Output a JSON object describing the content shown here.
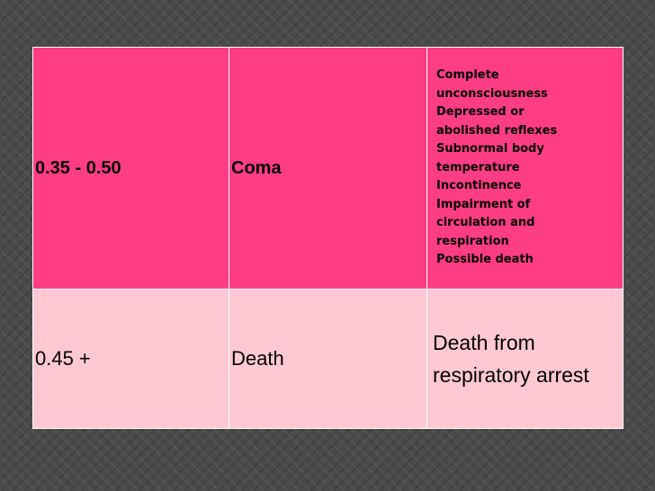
{
  "table": {
    "rows": [
      {
        "bac_range": "0.35 - 0.50",
        "stage": "Coma",
        "effects": [
          "Complete",
          "unconsciousness",
          "Depressed or",
          "abolished reflexes",
          "Subnormal body",
          "temperature",
          "Incontinence",
          "Impairment of",
          "circulation and",
          "respiration",
          "Possible death"
        ]
      },
      {
        "bac_range": "0.45 +",
        "stage": "Death",
        "effects": [
          "Death from",
          "respiratory arrest"
        ]
      }
    ]
  },
  "colors": {
    "row_coma_bg": "#ff3d84",
    "row_death_bg": "#ffc8d3",
    "slide_bg": "#4a4a4a",
    "grid_line": "#ffffff"
  }
}
